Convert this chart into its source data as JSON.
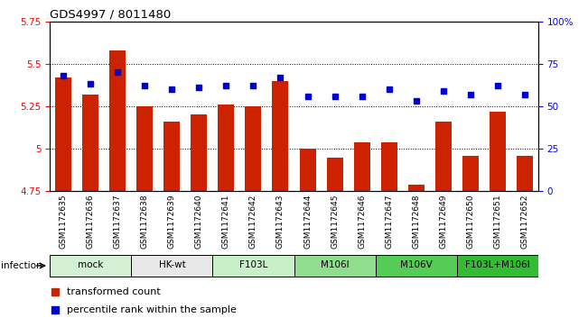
{
  "title": "GDS4997 / 8011480",
  "samples": [
    "GSM1172635",
    "GSM1172636",
    "GSM1172637",
    "GSM1172638",
    "GSM1172639",
    "GSM1172640",
    "GSM1172641",
    "GSM1172642",
    "GSM1172643",
    "GSM1172644",
    "GSM1172645",
    "GSM1172646",
    "GSM1172647",
    "GSM1172648",
    "GSM1172649",
    "GSM1172650",
    "GSM1172651",
    "GSM1172652"
  ],
  "red_values": [
    5.42,
    5.32,
    5.58,
    5.25,
    5.16,
    5.2,
    5.26,
    5.25,
    5.4,
    5.0,
    4.95,
    5.04,
    5.04,
    4.79,
    5.16,
    4.96,
    5.22,
    4.96
  ],
  "blue_values": [
    68,
    63,
    70,
    62,
    60,
    61,
    62,
    62,
    67,
    56,
    56,
    56,
    60,
    53,
    59,
    57,
    62,
    57
  ],
  "groups": [
    {
      "label": "mock",
      "start": 0,
      "end": 3,
      "color": "#d4f0d4"
    },
    {
      "label": "HK-wt",
      "start": 3,
      "end": 6,
      "color": "#e8e8e8"
    },
    {
      "label": "F103L",
      "start": 6,
      "end": 9,
      "color": "#c8f0c8"
    },
    {
      "label": "M106I",
      "start": 9,
      "end": 12,
      "color": "#90dd90"
    },
    {
      "label": "M106V",
      "start": 12,
      "end": 15,
      "color": "#55cc55"
    },
    {
      "label": "F103L+M106I",
      "start": 15,
      "end": 18,
      "color": "#33bb33"
    }
  ],
  "ylim_left": [
    4.75,
    5.75
  ],
  "ylim_right": [
    0,
    100
  ],
  "yticks_left": [
    4.75,
    5.0,
    5.25,
    5.5,
    5.75
  ],
  "ytick_labels_left": [
    "4.75",
    "5",
    "5.25",
    "5.5",
    "5.75"
  ],
  "yticks_right": [
    0,
    25,
    50,
    75,
    100
  ],
  "ytick_labels_right": [
    "0",
    "25",
    "50",
    "75",
    "100%"
  ],
  "bar_color": "#cc2200",
  "dot_color": "#0000cc",
  "infection_label": "infection",
  "legend_items": [
    "transformed count",
    "percentile rank within the sample"
  ]
}
